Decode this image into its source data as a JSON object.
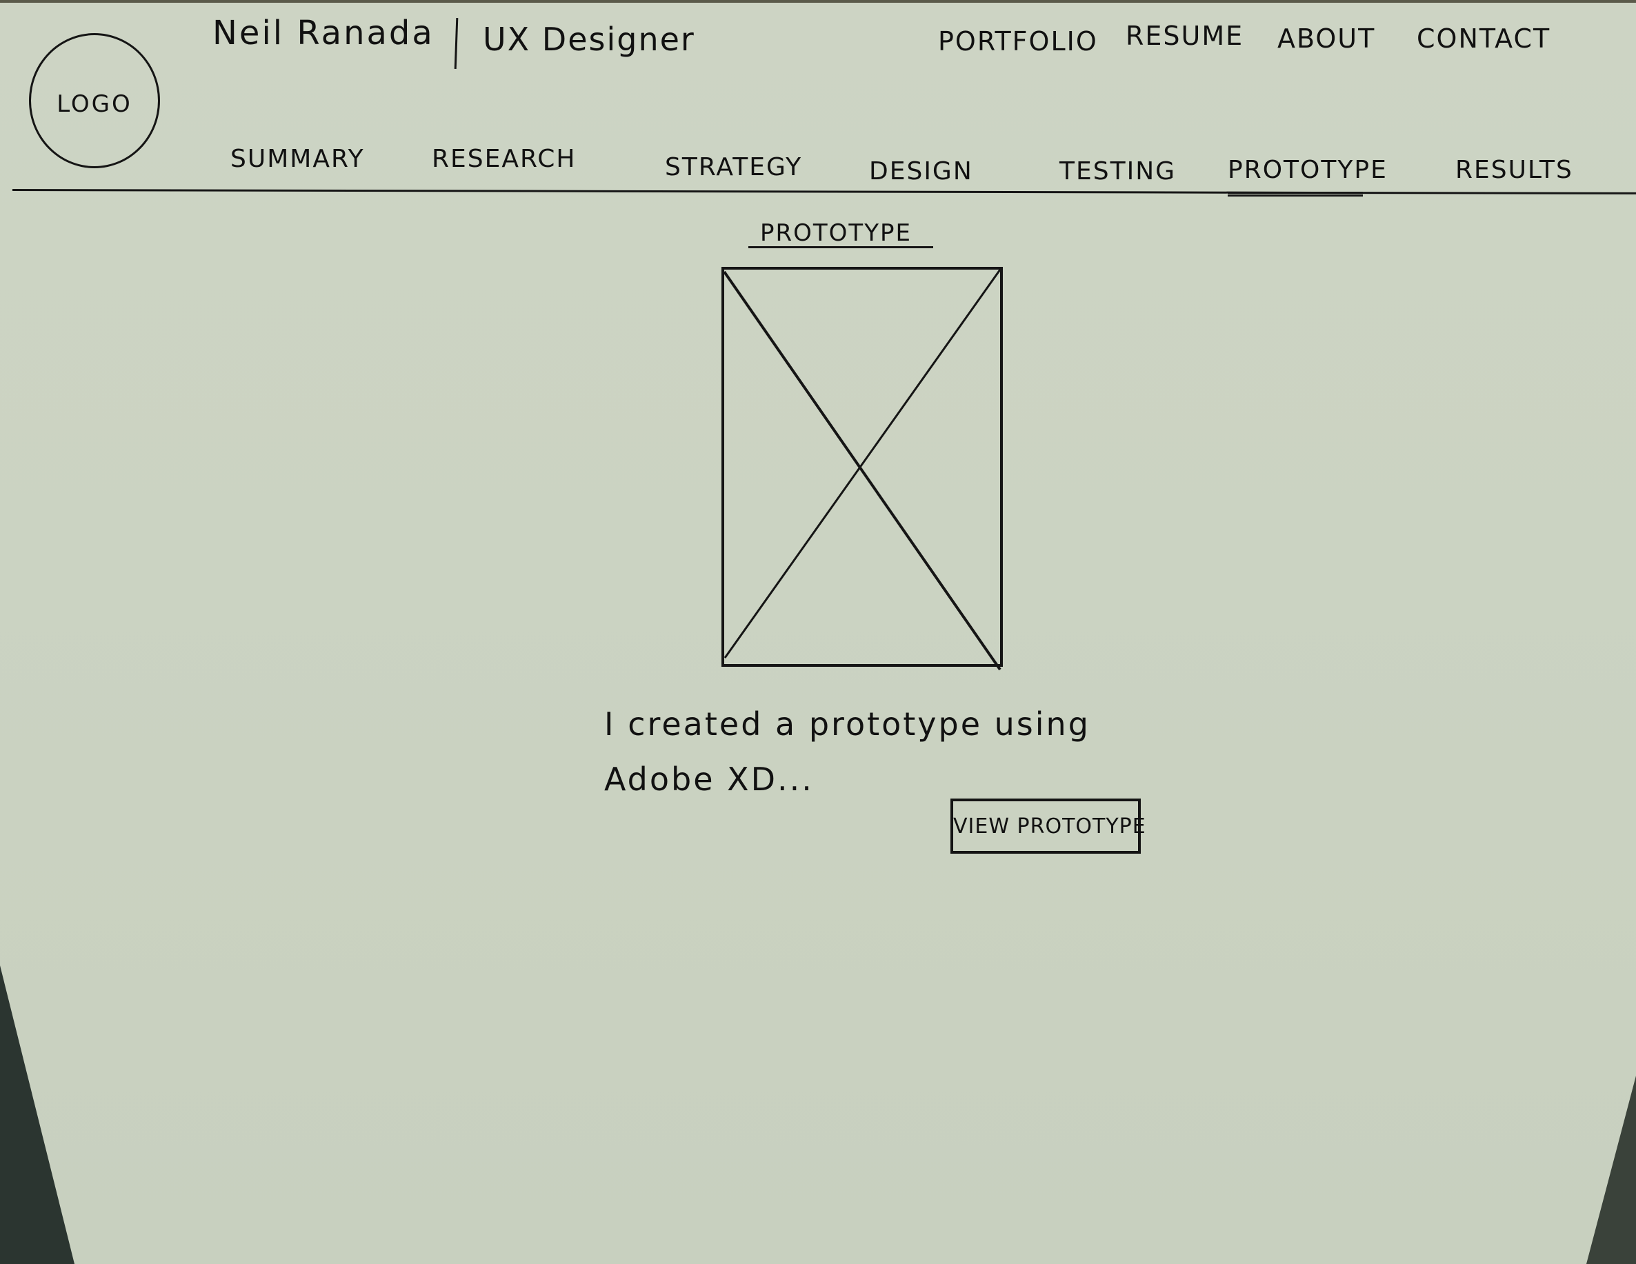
{
  "header": {
    "logo_label": "LOGO",
    "brand_name": "Neil Ranada",
    "brand_role": "UX Designer"
  },
  "top_nav": {
    "items": [
      {
        "label": "PORTFOLIO"
      },
      {
        "label": "RESUME"
      },
      {
        "label": "ABOUT"
      },
      {
        "label": "CONTACT"
      }
    ]
  },
  "section_nav": {
    "active": "PROTOTYPE",
    "items": [
      {
        "label": "SUMMARY"
      },
      {
        "label": "RESEARCH"
      },
      {
        "label": "STRATEGY"
      },
      {
        "label": "DESIGN"
      },
      {
        "label": "TESTING"
      },
      {
        "label": "PROTOTYPE"
      },
      {
        "label": "RESULTS"
      }
    ]
  },
  "main": {
    "section_title": "PROTOTYPE",
    "description": "I created a prototype using\nAdobe XD...",
    "view_button_label": "VIEW PROTOTYPE"
  }
}
